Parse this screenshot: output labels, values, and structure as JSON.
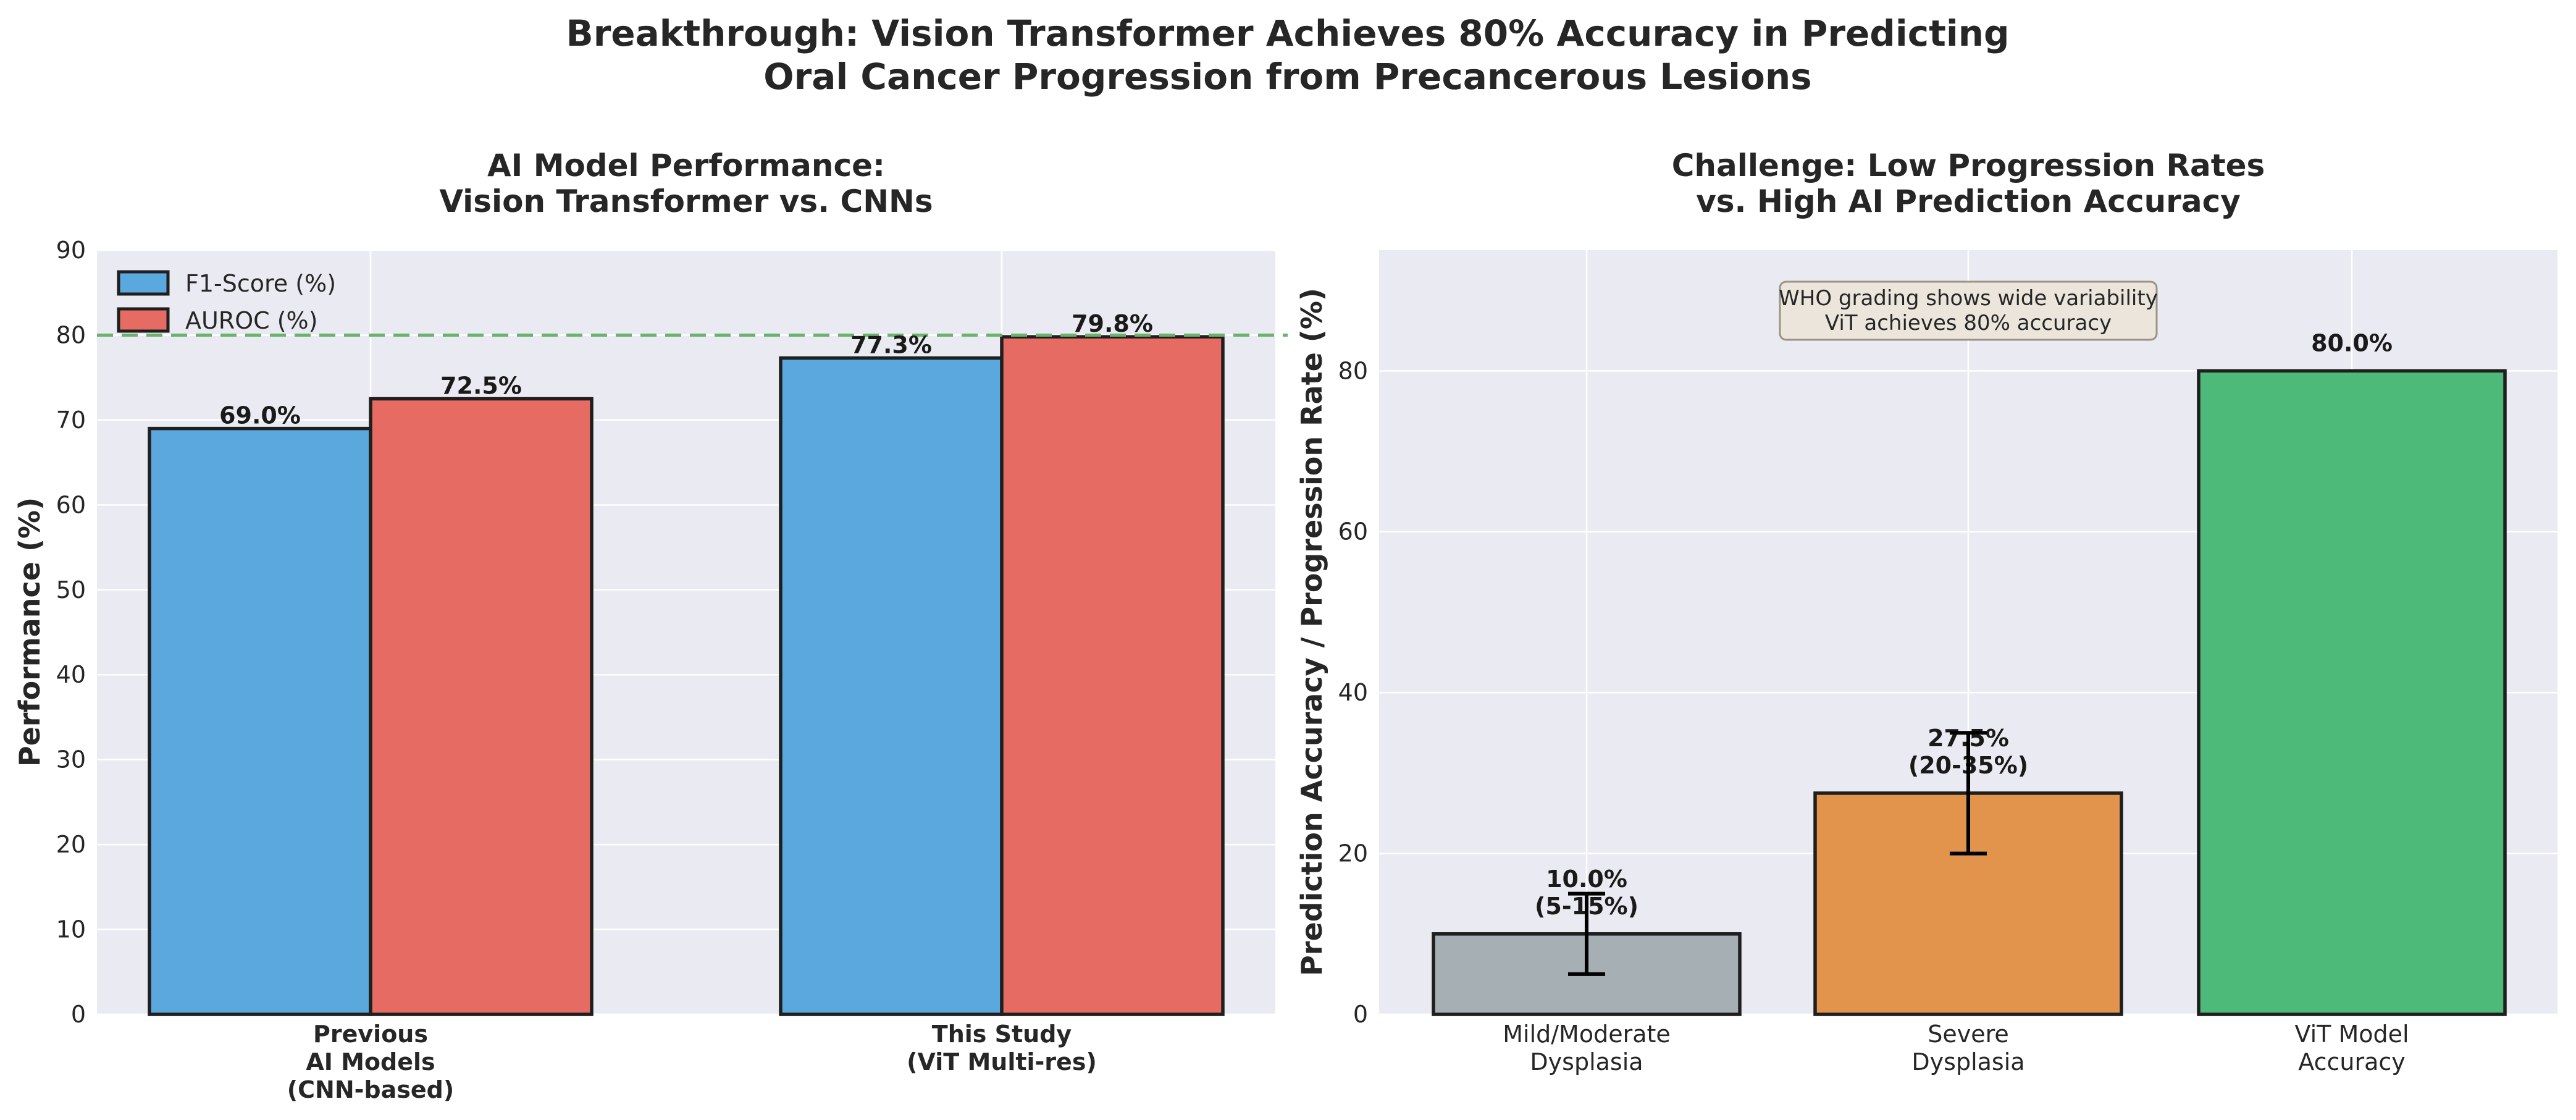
{
  "figure": {
    "title_line1": "Breakthrough: Vision Transformer Achieves 80% Accuracy in Predicting",
    "title_line2": "Oral Cancer Progression from Precancerous Lesions"
  },
  "colors": {
    "panel_bg": "#eaeaf2",
    "grid": "#ffffff",
    "f1": "#5ba8df",
    "auroc": "#e66b62",
    "mild": "#a5afb4",
    "severe": "#e3944c",
    "vit": "#4dba7a",
    "bar_edge": "#1f1f1f",
    "refline": "#6ab26e",
    "annot_bg": "#ebe5dc",
    "annot_edge": "#9c9384"
  },
  "chart_data": [
    {
      "type": "bar",
      "title_line1": "AI Model Performance:",
      "title_line2": "Vision Transformer vs. CNNs",
      "ylabel": "Performance (%)",
      "ylim": [
        0,
        90
      ],
      "yticks": [
        "0",
        "10",
        "20",
        "30",
        "40",
        "50",
        "60",
        "70",
        "80",
        "90"
      ],
      "categories": [
        [
          "Previous",
          "AI Models",
          "(CNN-based)"
        ],
        [
          "This Study",
          "(ViT Multi-res)"
        ]
      ],
      "series": [
        {
          "name": "F1-Score (%)",
          "values": [
            69.0,
            77.3
          ],
          "labels": [
            "69.0%",
            "77.3%"
          ]
        },
        {
          "name": "AUROC (%)",
          "values": [
            72.5,
            79.8
          ],
          "labels": [
            "72.5%",
            "79.8%"
          ]
        }
      ],
      "reference_line": 80,
      "legend_position": "upper-left",
      "grid": true
    },
    {
      "type": "bar",
      "title_line1": "Challenge: Low Progression Rates",
      "title_line2": "vs. High AI Prediction Accuracy",
      "ylabel": "Prediction Accuracy / Progression Rate (%)",
      "ylim": [
        0,
        95
      ],
      "yticks": [
        "0",
        "20",
        "40",
        "60",
        "80"
      ],
      "categories": [
        [
          "Mild/Moderate",
          "Dysplasia"
        ],
        [
          "Severe",
          "Dysplasia"
        ],
        [
          "ViT Model",
          "Accuracy"
        ]
      ],
      "values": [
        10.0,
        27.5,
        80.0
      ],
      "error_ranges": [
        [
          5,
          15
        ],
        [
          20,
          35
        ],
        null
      ],
      "labels": [
        [
          "10.0%",
          "(5-15%)"
        ],
        [
          "27.5%",
          "(20-35%)"
        ],
        [
          "80.0%"
        ]
      ],
      "annotation_line1": "WHO grading shows wide variability",
      "annotation_line2": "ViT achieves 80% accuracy",
      "grid": true
    }
  ]
}
